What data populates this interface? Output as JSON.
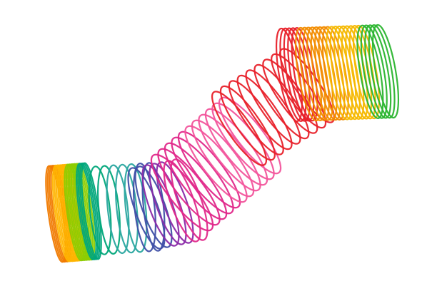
{
  "image": {
    "subject": "slinky-spring",
    "background_color": "#ffffff",
    "palette": [
      "#f07a00",
      "#ffb400",
      "#8ccc00",
      "#00a67a",
      "#2aa6a0",
      "#3f4fa6",
      "#8a2aa8",
      "#e0288a",
      "#f2559c",
      "#e8212a",
      "#f28c00",
      "#f6b800",
      "#2bb52f"
    ]
  }
}
